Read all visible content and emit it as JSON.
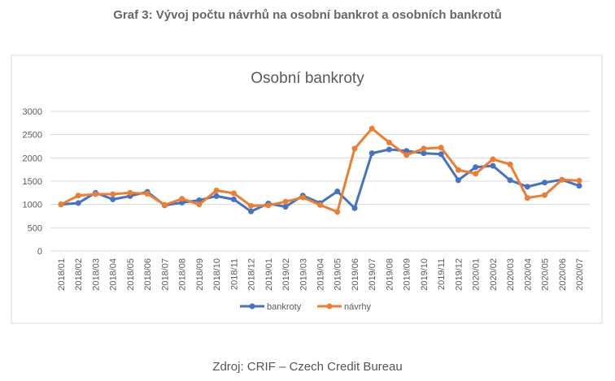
{
  "header": {
    "title": "Graf 3: Vývoj počtu návrhů na osobní bankrot a osobních bankrotů"
  },
  "chart_data": {
    "type": "line",
    "title": "Osobní bankroty",
    "categories": [
      "2018/01",
      "2018/02",
      "2018/03",
      "2018/04",
      "2018/05",
      "2018/06",
      "2018/07",
      "2018/08",
      "2018/09",
      "2018/10",
      "2018/11",
      "2018/12",
      "2019/01",
      "2019/02",
      "2019/03",
      "2019/04",
      "2019/05",
      "2019/06",
      "2019/07",
      "2019/08",
      "2019/09",
      "2019/10",
      "2019/11",
      "2019/12",
      "2020/01",
      "2020/02",
      "2020/03",
      "2020/04",
      "2020/05",
      "2020/06",
      "2020/07"
    ],
    "series": [
      {
        "name": "bankroty",
        "color": "#4472c4",
        "values": [
          1000,
          1030,
          1250,
          1110,
          1180,
          1270,
          980,
          1040,
          1090,
          1180,
          1110,
          850,
          1020,
          950,
          1190,
          1030,
          1280,
          920,
          2100,
          2180,
          2150,
          2100,
          2080,
          1520,
          1800,
          1830,
          1520,
          1380,
          1470,
          1530,
          1400
        ]
      },
      {
        "name": "návrhy",
        "color": "#ed7d31",
        "values": [
          1000,
          1190,
          1220,
          1220,
          1250,
          1230,
          990,
          1120,
          1000,
          1300,
          1240,
          970,
          980,
          1060,
          1150,
          990,
          840,
          2200,
          2630,
          2330,
          2060,
          2200,
          2220,
          1740,
          1660,
          1970,
          1860,
          1140,
          1200,
          1530,
          1510
        ]
      }
    ],
    "ylim": [
      0,
      3000
    ],
    "yticks": [
      0,
      500,
      1000,
      1500,
      2000,
      2500,
      3000
    ],
    "grid": true,
    "legend": "bottom"
  },
  "footer": {
    "source": "Zdroj: CRIF – Czech Credit Bureau"
  }
}
